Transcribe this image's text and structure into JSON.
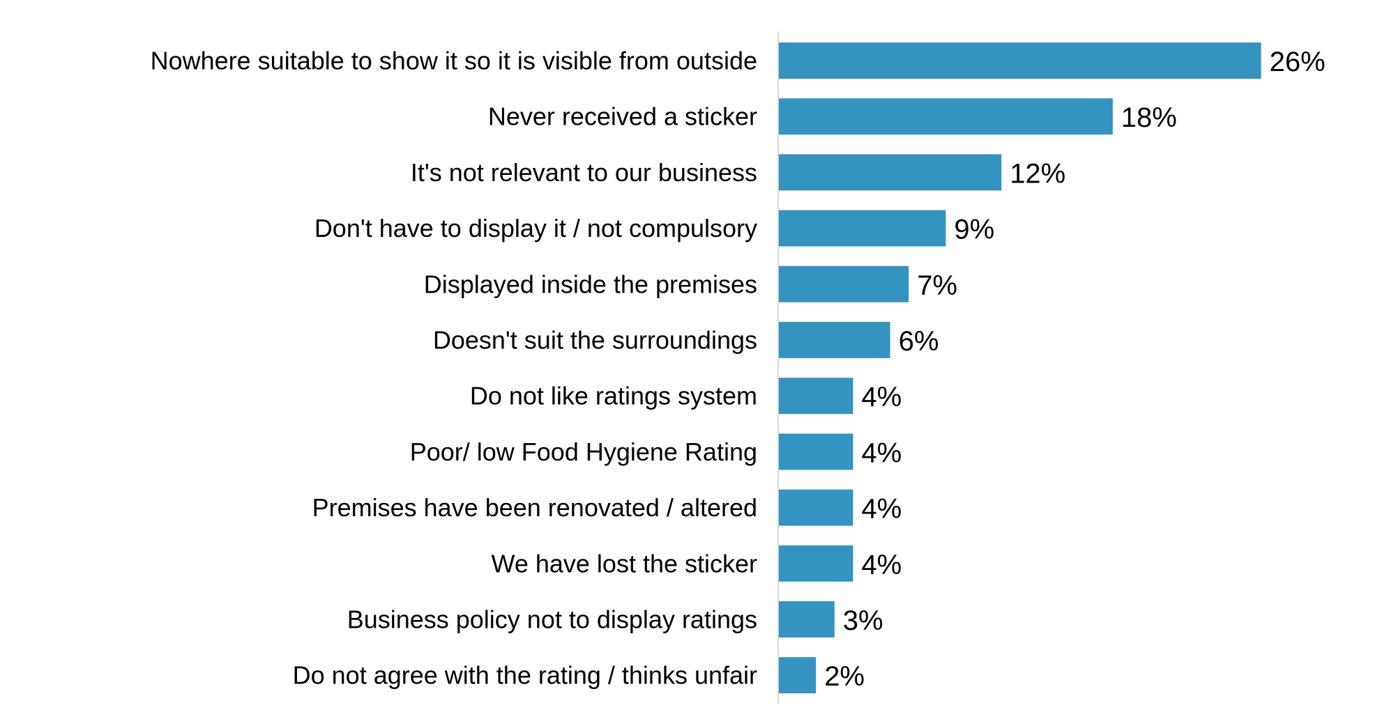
{
  "chart_data": {
    "type": "bar",
    "orientation": "horizontal",
    "categories": [
      "Nowhere suitable to show it so it is visible from outside",
      "Never received a sticker",
      "It's not relevant to our business",
      "Don't have to display it / not compulsory",
      "Displayed inside the premises",
      "Doesn't suit the surroundings",
      "Do not like ratings system",
      "Poor/ low Food Hygiene Rating",
      "Premises have been renovated / altered",
      "We have lost the sticker",
      "Business policy not to display ratings",
      "Do not agree with the rating / thinks unfair"
    ],
    "values": [
      26,
      18,
      12,
      9,
      7,
      6,
      4,
      4,
      4,
      4,
      3,
      2
    ],
    "value_labels": [
      "26%",
      "18%",
      "12%",
      "9%",
      "7%",
      "6%",
      "4%",
      "4%",
      "4%",
      "4%",
      "3%",
      "2%"
    ],
    "bar_color": "#3493C1",
    "axis_color": "#D9D9D9",
    "grid": false,
    "legend": "none"
  }
}
